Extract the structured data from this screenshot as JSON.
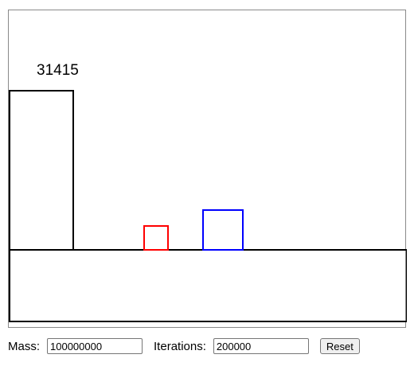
{
  "simulation": {
    "collision_count": "31415",
    "colors": {
      "frame": "#8a8a8a",
      "wall_and_floor": "#000000",
      "small_block": "#ff0000",
      "large_block": "#0000ff"
    }
  },
  "controls": {
    "mass_label": "Mass:",
    "mass_value": "100000000",
    "iterations_label": "Iterations:",
    "iterations_value": "200000",
    "reset_label": "Reset"
  }
}
